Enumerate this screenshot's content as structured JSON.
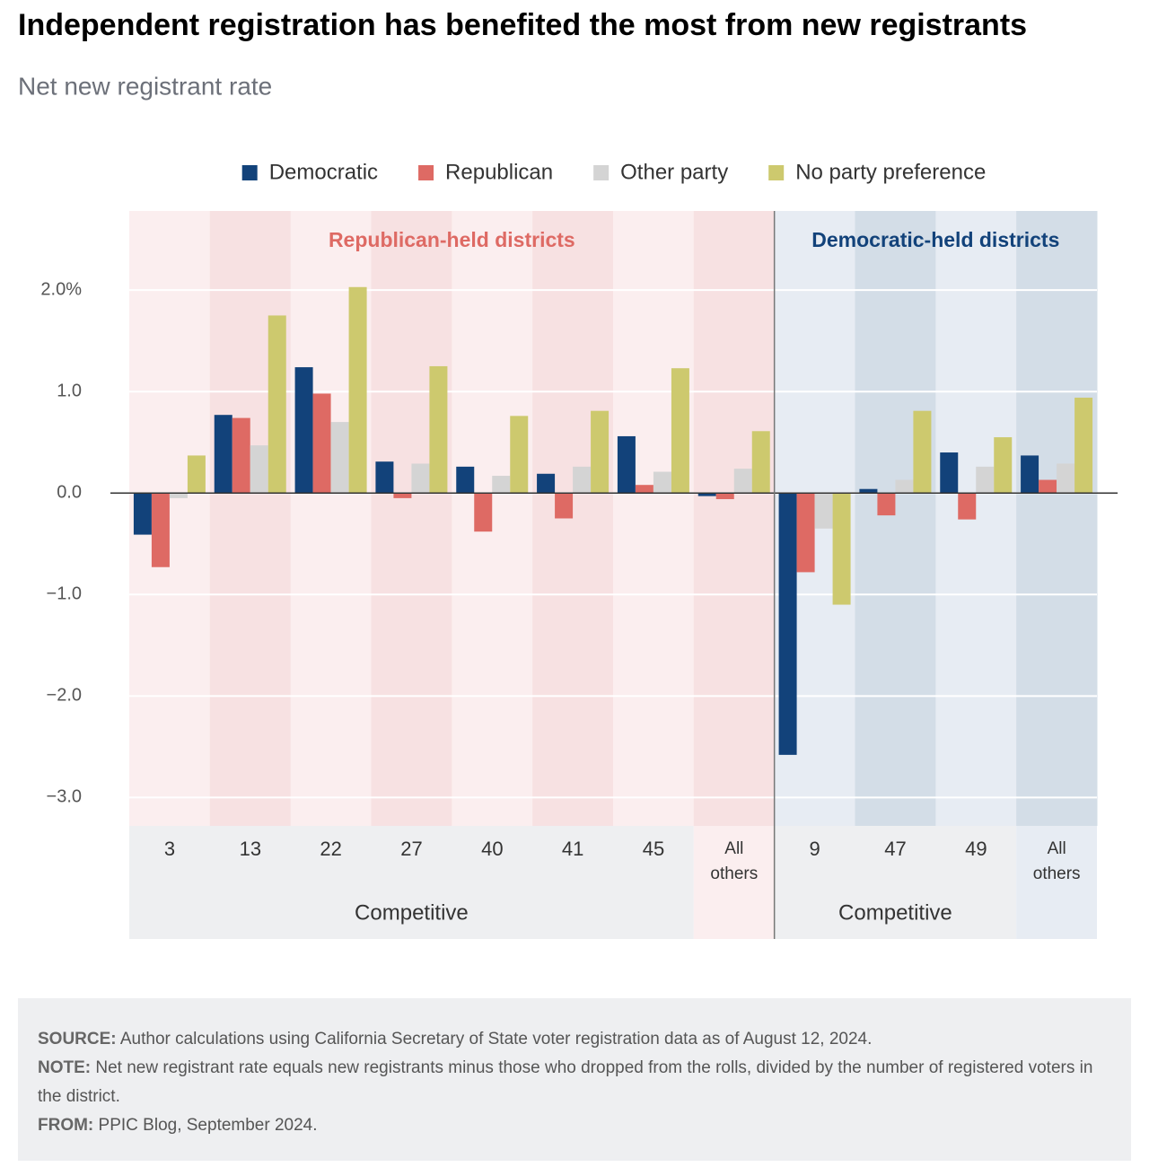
{
  "chart_data": {
    "type": "bar",
    "title": "Independent registration has benefited the most from new registrants",
    "subtitle": "Net new registrant rate",
    "categories": [
      "3",
      "13",
      "22",
      "27",
      "40",
      "41",
      "45",
      "All others",
      "9",
      "47",
      "49",
      "All others"
    ],
    "panel_titles": [
      "Republican-held districts",
      "Democratic-held districts"
    ],
    "group_labels": [
      "Competitive",
      "Competitive"
    ],
    "series": [
      {
        "name": "Democratic",
        "color": "#12427a",
        "values": [
          -0.41,
          0.77,
          1.24,
          0.31,
          0.26,
          0.19,
          0.56,
          -0.03,
          -2.58,
          0.04,
          0.4,
          0.37
        ]
      },
      {
        "name": "Republican",
        "color": "#de6a64",
        "values": [
          -0.73,
          0.74,
          0.98,
          -0.05,
          -0.38,
          -0.25,
          0.08,
          -0.06,
          -0.78,
          -0.22,
          -0.26,
          0.13
        ]
      },
      {
        "name": "Other party",
        "color": "#d4d4d4",
        "values": [
          -0.05,
          0.47,
          0.7,
          0.29,
          0.17,
          0.26,
          0.21,
          0.24,
          -0.35,
          0.13,
          0.26,
          0.29
        ]
      },
      {
        "name": "No party preference",
        "color": "#cdc96e",
        "values": [
          0.37,
          1.75,
          2.03,
          1.25,
          0.76,
          0.81,
          1.23,
          0.61,
          -1.1,
          0.81,
          0.55,
          0.94
        ]
      }
    ],
    "ylim": [
      -3.28,
      2.78
    ],
    "yticks": [
      {
        "value": 2,
        "label": "2.0%"
      },
      {
        "value": 1,
        "label": "1.0"
      },
      {
        "value": 0,
        "label": "0.0"
      },
      {
        "value": -1,
        "label": "−1.0"
      },
      {
        "value": -2,
        "label": "−2.0"
      },
      {
        "value": -3,
        "label": "−3.0"
      }
    ],
    "grid": true
  },
  "notes": [
    {
      "label": "SOURCE:",
      "text": "Author calculations using California Secretary of State voter registration data as of August 12, 2024."
    },
    {
      "label": "NOTE:",
      "text": "Net new registrant rate equals new registrants minus those who dropped from the rolls, divided by the number of registered voters in the district."
    },
    {
      "label": "FROM:",
      "text": "PPIC Blog, September 2024."
    }
  ]
}
